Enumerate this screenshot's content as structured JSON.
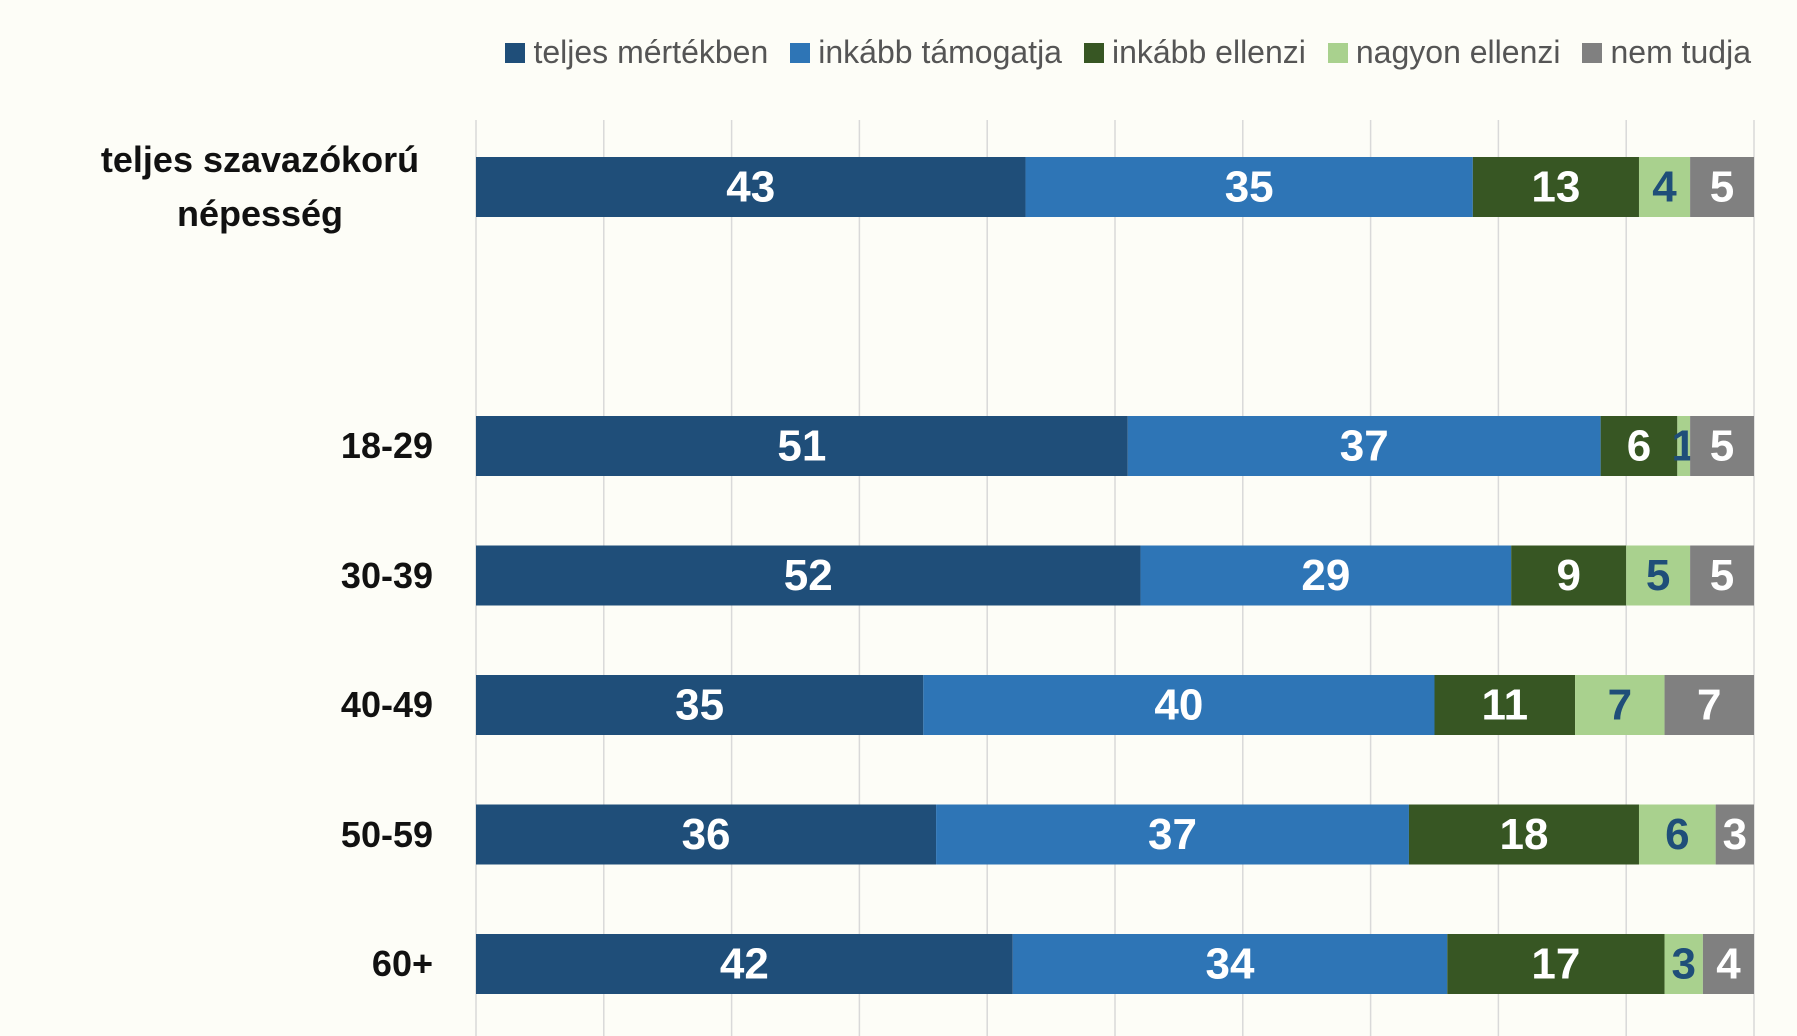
{
  "chart_data": {
    "type": "stacked_barh",
    "categories": [
      "teljes szavazókorú népesség",
      null,
      "18-29",
      "30-39",
      "40-49",
      "50-59",
      "60+"
    ],
    "series": [
      {
        "name": "teljes mértékben",
        "color": "#1f4e79",
        "values": [
          43,
          null,
          51,
          52,
          35,
          36,
          42
        ]
      },
      {
        "name": "inkább támogatja",
        "color": "#2e75b6",
        "values": [
          35,
          null,
          37,
          29,
          40,
          37,
          34
        ]
      },
      {
        "name": "inkább ellenzi",
        "color": "#375623",
        "values": [
          13,
          null,
          6,
          9,
          11,
          18,
          17
        ]
      },
      {
        "name": "nagyon ellenzi",
        "color": "#a9d18e",
        "values": [
          4,
          null,
          1,
          5,
          7,
          6,
          3
        ]
      },
      {
        "name": "nem tudja",
        "color": "#808080",
        "values": [
          5,
          null,
          5,
          5,
          7,
          3,
          4
        ]
      }
    ],
    "xlim": [
      0,
      100
    ],
    "xticks": [
      0,
      10,
      20,
      30,
      40,
      50,
      60,
      70,
      80,
      90,
      100
    ],
    "grid": true,
    "legend": "top"
  }
}
